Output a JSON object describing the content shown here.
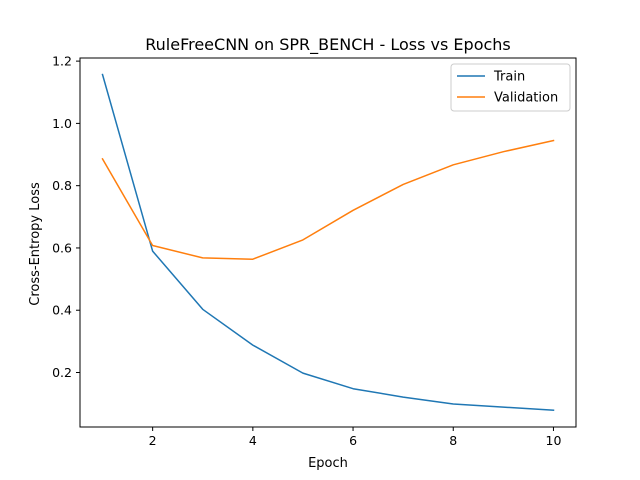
{
  "chart_data": {
    "type": "line",
    "title": "RuleFreeCNN on SPR_BENCH - Loss vs Epochs",
    "xlabel": "Epoch",
    "ylabel": "Cross-Entropy Loss",
    "x": [
      1,
      2,
      3,
      4,
      5,
      6,
      7,
      8,
      9,
      10
    ],
    "xlim": [
      0.55,
      10.45
    ],
    "ylim": [
      0.025,
      1.21
    ],
    "xticks": [
      2,
      4,
      6,
      8,
      10
    ],
    "yticks": [
      0.2,
      0.4,
      0.6,
      0.8,
      1.0,
      1.2
    ],
    "xtick_labels": [
      "2",
      "4",
      "6",
      "8",
      "10"
    ],
    "ytick_labels": [
      "0.2",
      "0.4",
      "0.6",
      "0.8",
      "1.0",
      "1.2"
    ],
    "grid": false,
    "legend_position": "top-right",
    "series": [
      {
        "name": "Train",
        "color": "#1f77b4",
        "values": [
          1.157,
          0.59,
          0.403,
          0.288,
          0.198,
          0.148,
          0.121,
          0.099,
          0.089,
          0.079
        ]
      },
      {
        "name": "Validation",
        "color": "#ff7f0e",
        "values": [
          0.886,
          0.608,
          0.568,
          0.564,
          0.626,
          0.721,
          0.804,
          0.867,
          0.909,
          0.945
        ]
      }
    ]
  }
}
